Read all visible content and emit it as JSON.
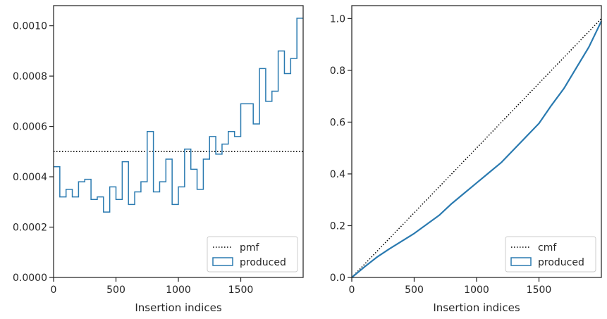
{
  "chart_data": [
    {
      "type": "histogram-step",
      "xlabel": "Insertion indices",
      "ylabel": "",
      "xlim": [
        0,
        2000
      ],
      "ylim": [
        0,
        0.00108
      ],
      "xticks": [
        0,
        500,
        1000,
        1500
      ],
      "yticks": [
        0,
        0.0002,
        0.0004,
        0.0006,
        0.0008,
        0.001
      ],
      "ytick_labels": [
        "0.0000",
        "0.0002",
        "0.0004",
        "0.0006",
        "0.0008",
        "0.0010"
      ],
      "bin_edges": [
        0,
        50,
        100,
        150,
        200,
        250,
        300,
        350,
        400,
        450,
        500,
        550,
        600,
        650,
        700,
        750,
        800,
        850,
        900,
        950,
        1000,
        1050,
        1100,
        1150,
        1200,
        1250,
        1300,
        1350,
        1400,
        1450,
        1500,
        1550,
        1600,
        1650,
        1700,
        1750,
        1800,
        1850,
        1900,
        1950,
        2000
      ],
      "series": [
        {
          "name": "pmf",
          "style": "dotted",
          "color": "#000000",
          "value": 0.0005
        },
        {
          "name": "produced",
          "style": "step",
          "color": "#2a7ab0",
          "values": [
            0.00044,
            0.00032,
            0.00035,
            0.00032,
            0.00038,
            0.00039,
            0.00031,
            0.00032,
            0.00026,
            0.00036,
            0.00031,
            0.00046,
            0.00029,
            0.00034,
            0.00038,
            0.00058,
            0.00034,
            0.00038,
            0.00047,
            0.00029,
            0.00036,
            0.00051,
            0.00043,
            0.00035,
            0.00047,
            0.00056,
            0.00049,
            0.00053,
            0.00058,
            0.00056,
            0.00069,
            0.00069,
            0.00061,
            0.00083,
            0.0007,
            0.00074,
            0.0009,
            0.00081,
            0.00087,
            0.00103
          ]
        }
      ],
      "legend": {
        "placement": "lower-right",
        "entries": [
          "pmf",
          "produced"
        ]
      }
    },
    {
      "type": "line",
      "xlabel": "Insertion indices",
      "ylabel": "",
      "xlim": [
        0,
        2000
      ],
      "ylim": [
        0,
        1.05
      ],
      "xticks": [
        0,
        500,
        1000,
        1500
      ],
      "yticks": [
        0,
        0.2,
        0.4,
        0.6,
        0.8,
        1.0
      ],
      "ytick_labels": [
        "0.0",
        "0.2",
        "0.4",
        "0.6",
        "0.8",
        "1.0"
      ],
      "series": [
        {
          "name": "cmf",
          "style": "dotted",
          "color": "#000000",
          "x": [
            0,
            2000
          ],
          "y": [
            0,
            1.0
          ]
        },
        {
          "name": "produced",
          "style": "step",
          "color": "#2a7ab0",
          "x": [
            0,
            100,
            200,
            300,
            400,
            500,
            600,
            700,
            800,
            900,
            1000,
            1100,
            1200,
            1300,
            1400,
            1500,
            1600,
            1700,
            1800,
            1900,
            2000
          ],
          "y": [
            0,
            0.04,
            0.078,
            0.11,
            0.14,
            0.17,
            0.205,
            0.24,
            0.285,
            0.325,
            0.365,
            0.405,
            0.445,
            0.495,
            0.545,
            0.595,
            0.665,
            0.73,
            0.81,
            0.89,
            0.99
          ]
        }
      ],
      "legend": {
        "placement": "lower-right",
        "entries": [
          "cmf",
          "produced"
        ]
      }
    }
  ]
}
